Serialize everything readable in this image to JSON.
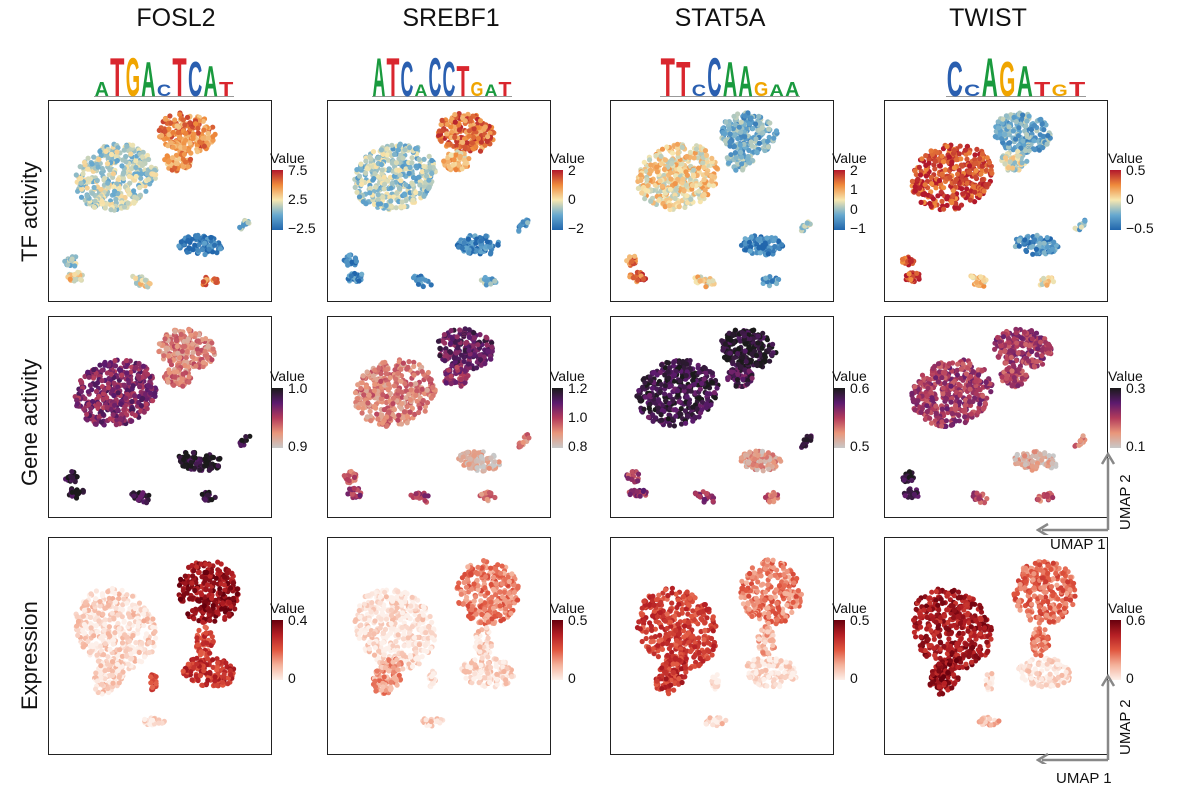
{
  "columns": [
    {
      "tf": "FOSL2",
      "motif": "ATGACTCAT"
    },
    {
      "tf": "SREBF1",
      "motif": "ATCACCTGAT"
    },
    {
      "tf": "STAT5A",
      "motif": "TTCCAAGAA"
    },
    {
      "tf": "TWIST",
      "motif": "CCAGATGT"
    }
  ],
  "rows": [
    {
      "label": "TF activity"
    },
    {
      "label": "Gene activity"
    },
    {
      "label": "Expression"
    }
  ],
  "legend_title": "Value",
  "legends": [
    [
      {
        "ticks": [
          "7.5",
          "2.5",
          "−2.5"
        ]
      },
      {
        "ticks": [
          "1.0",
          "0.9"
        ]
      },
      {
        "ticks": [
          "0.4",
          "0"
        ]
      }
    ],
    [
      {
        "ticks": [
          "2",
          "0",
          "−2"
        ]
      },
      {
        "ticks": [
          "1.2",
          "1.0",
          "0.8"
        ]
      },
      {
        "ticks": [
          "0.5",
          "0"
        ]
      }
    ],
    [
      {
        "ticks": [
          "2",
          "1",
          "0",
          "−1"
        ]
      },
      {
        "ticks": [
          "0.6",
          "0.5"
        ]
      },
      {
        "ticks": [
          "0.5",
          "0"
        ]
      }
    ],
    [
      {
        "ticks": [
          "0.5",
          "0",
          "−0.5"
        ]
      },
      {
        "ticks": [
          "0.3",
          "0.1"
        ]
      },
      {
        "ticks": [
          "0.6",
          "0"
        ]
      }
    ]
  ],
  "axes": {
    "x": "UMAP 1",
    "y": "UMAP 2"
  },
  "colors": {
    "tf_scale": [
      "#2166ac",
      "#67a9cf",
      "#f7e7b0",
      "#ef8a3b",
      "#b2182b"
    ],
    "gene_scale": [
      "#c8c8c8",
      "#e9967a",
      "#b33b5b",
      "#5c1a6e",
      "#1a1a1a"
    ],
    "expr_scale": [
      "#fdf0ea",
      "#f4b19a",
      "#e0563f",
      "#b51f24",
      "#67000d"
    ]
  }
}
